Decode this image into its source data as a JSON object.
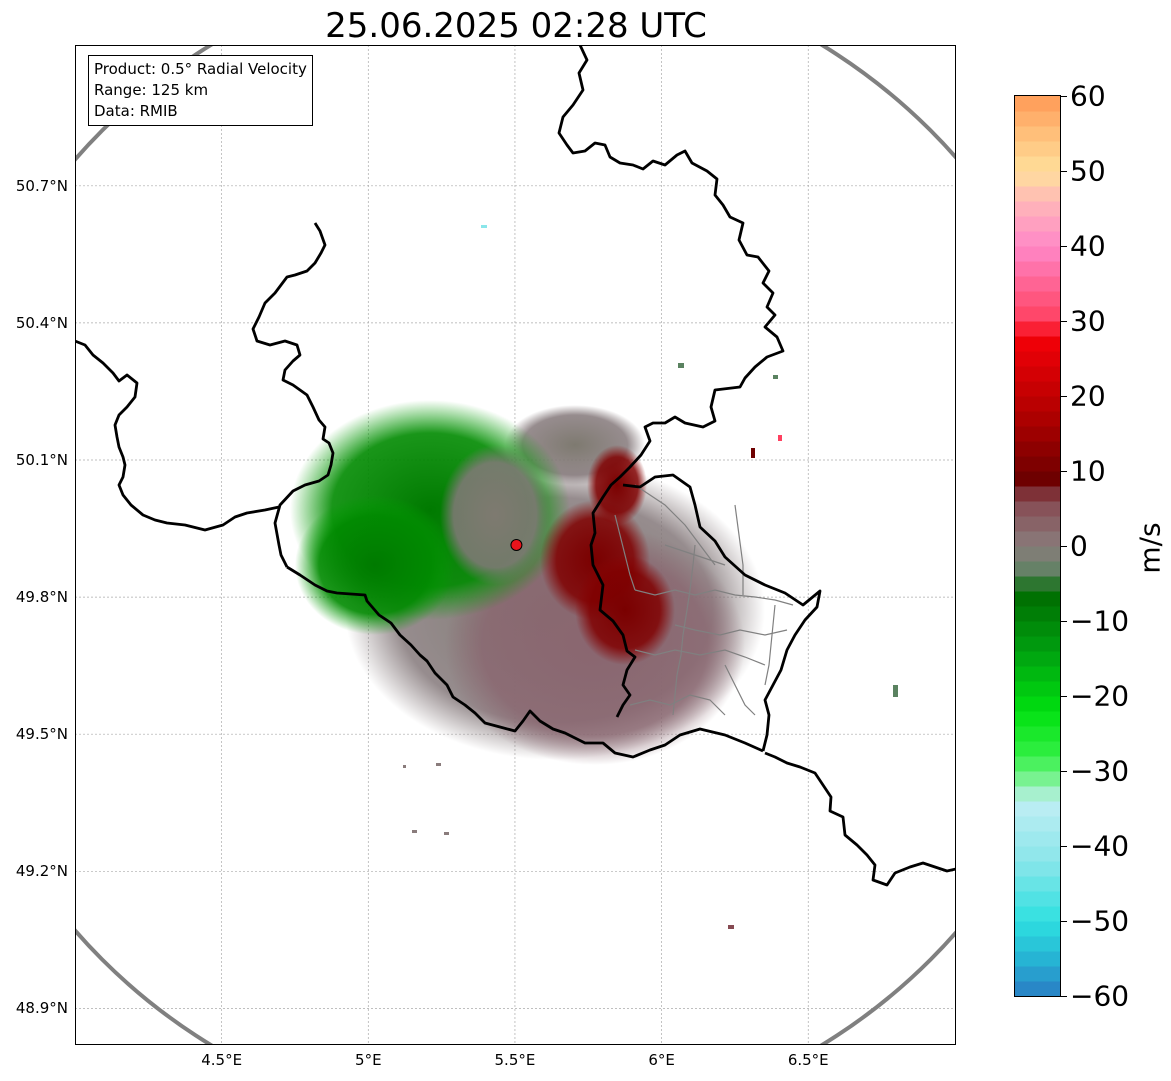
{
  "title": "25.06.2025 02:28 UTC",
  "info_box": {
    "product": "Product: 0.5° Radial Velocity",
    "range": "Range: 125 km",
    "data": "Data: RMIB"
  },
  "map": {
    "lon_range": [
      4.0,
      7.0
    ],
    "lat_range": [
      48.8,
      51.0
    ],
    "lon_ticks": [
      "4.5°E",
      "5°E",
      "5.5°E",
      "6°E",
      "6.5°E"
    ],
    "lat_ticks": [
      "50.7°N",
      "50.4°N",
      "50.1°N",
      "49.8°N",
      "49.5°N",
      "49.2°N",
      "48.9°N"
    ],
    "radar_site": {
      "lon": 5.505,
      "lat": 49.914
    },
    "range_ring_km": 125,
    "grid": true,
    "colors": {
      "border": "#000000",
      "inner_border": "#808080",
      "range_ring": "#808080",
      "radar_marker": "#e8141c"
    }
  },
  "colorbar": {
    "label": "m/s",
    "min": -60,
    "max": 60,
    "ticks": [
      "60",
      "50",
      "40",
      "30",
      "20",
      "10",
      "0",
      "−10",
      "−20",
      "−30",
      "−40",
      "−50",
      "−60"
    ],
    "tick_values": [
      60,
      50,
      40,
      30,
      20,
      10,
      0,
      -10,
      -20,
      -30,
      -40,
      -50,
      -60
    ],
    "stops": [
      {
        "v": -60,
        "color": "#2a7cc4"
      },
      {
        "v": -55,
        "color": "#26b4d4"
      },
      {
        "v": -50,
        "color": "#2ee0e0"
      },
      {
        "v": -42,
        "color": "#8ae6ea"
      },
      {
        "v": -34,
        "color": "#c0eef4"
      },
      {
        "v": -32,
        "color": "#8ef2a8"
      },
      {
        "v": -28,
        "color": "#34f046"
      },
      {
        "v": -22,
        "color": "#00e010"
      },
      {
        "v": -14,
        "color": "#00a010"
      },
      {
        "v": -6,
        "color": "#006a00"
      },
      {
        "v": -4,
        "color": "#5a8260"
      },
      {
        "v": 0,
        "color": "#8a7c7c"
      },
      {
        "v": 6,
        "color": "#864a52"
      },
      {
        "v": 9,
        "color": "#6e0000"
      },
      {
        "v": 18,
        "color": "#b40000"
      },
      {
        "v": 28,
        "color": "#f40008"
      },
      {
        "v": 30,
        "color": "#ff4060"
      },
      {
        "v": 40,
        "color": "#ff88c8"
      },
      {
        "v": 46,
        "color": "#ffb8b8"
      },
      {
        "v": 50,
        "color": "#ffe09a"
      },
      {
        "v": 55,
        "color": "#ffbf7a"
      },
      {
        "v": 60,
        "color": "#ff9a56"
      }
    ]
  }
}
